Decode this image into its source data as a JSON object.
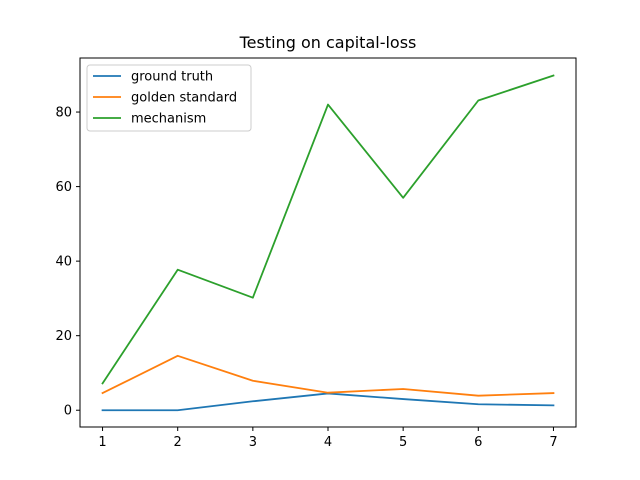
{
  "chart_data": {
    "type": "line",
    "title": "Testing on capital-loss",
    "xlabel": "",
    "ylabel": "",
    "x": [
      1,
      2,
      3,
      4,
      5,
      6,
      7
    ],
    "xticks": [
      "1",
      "2",
      "3",
      "4",
      "5",
      "6",
      "7"
    ],
    "yticks": [
      "0",
      "20",
      "40",
      "60",
      "80"
    ],
    "xlim": [
      0.7,
      7.3
    ],
    "ylim": [
      -4.5,
      94.5
    ],
    "grid": false,
    "legend_position": "upper-left",
    "series": [
      {
        "name": "ground truth",
        "color": "#1f77b4",
        "values": [
          0.0,
          0.0,
          2.4,
          4.5,
          3.0,
          1.6,
          1.3
        ]
      },
      {
        "name": "golden standard",
        "color": "#ff7f0e",
        "values": [
          4.6,
          14.6,
          7.9,
          4.7,
          5.7,
          3.9,
          4.6
        ]
      },
      {
        "name": "mechanism",
        "color": "#2ca02c",
        "values": [
          7.2,
          37.7,
          30.2,
          82.0,
          57.0,
          83.1,
          89.8
        ]
      }
    ]
  }
}
